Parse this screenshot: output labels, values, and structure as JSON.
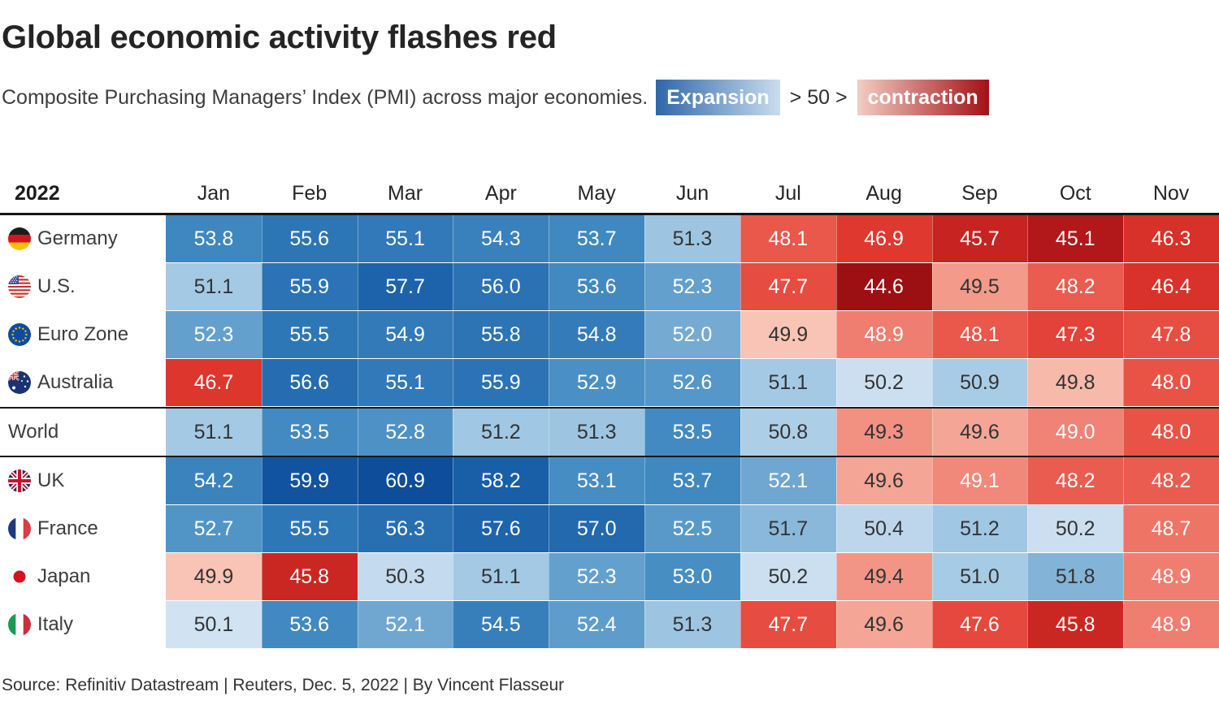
{
  "chart_data": {
    "type": "heatmap",
    "title": "Global economic activity flashes red",
    "subtitle": "Composite Purchasing Managers’ Index (PMI) across major economies.",
    "legend": {
      "expansion_label": "Expansion",
      "threshold_label": "> 50 >",
      "contraction_label": "contraction",
      "expansion_gradient": [
        "#2F66A9",
        "#C9DDEF"
      ],
      "contraction_gradient": [
        "#F3CDC3",
        "#A31016"
      ]
    },
    "year": "2022",
    "columns": [
      "Jan",
      "Feb",
      "Mar",
      "Apr",
      "May",
      "Jun",
      "Jul",
      "Aug",
      "Sep",
      "Oct",
      "Nov"
    ],
    "rows": [
      {
        "label": "Germany",
        "flag": "germany",
        "values": [
          53.8,
          55.6,
          55.1,
          54.3,
          53.7,
          51.3,
          48.1,
          46.9,
          45.7,
          45.1,
          46.3
        ]
      },
      {
        "label": "U.S.",
        "flag": "us",
        "values": [
          51.1,
          55.9,
          57.7,
          56.0,
          53.6,
          52.3,
          47.7,
          44.6,
          49.5,
          48.2,
          46.4
        ]
      },
      {
        "label": "Euro Zone",
        "flag": "eurozone",
        "values": [
          52.3,
          55.5,
          54.9,
          55.8,
          54.8,
          52.0,
          49.9,
          48.9,
          48.1,
          47.3,
          47.8
        ]
      },
      {
        "label": "Australia",
        "flag": "australia",
        "values": [
          46.7,
          56.6,
          55.1,
          55.9,
          52.9,
          52.6,
          51.1,
          50.2,
          50.9,
          49.8,
          48.0
        ]
      },
      {
        "label": "World",
        "flag": null,
        "divider": true,
        "values": [
          51.1,
          53.5,
          52.8,
          51.2,
          51.3,
          53.5,
          50.8,
          49.3,
          49.6,
          49.0,
          48.0
        ]
      },
      {
        "label": "UK",
        "flag": "uk",
        "values": [
          54.2,
          59.9,
          60.9,
          58.2,
          53.1,
          53.7,
          52.1,
          49.6,
          49.1,
          48.2,
          48.2
        ]
      },
      {
        "label": "France",
        "flag": "france",
        "values": [
          52.7,
          55.5,
          56.3,
          57.6,
          57.0,
          52.5,
          51.7,
          50.4,
          51.2,
          50.2,
          48.7
        ]
      },
      {
        "label": "Japan",
        "flag": "japan",
        "values": [
          49.9,
          45.8,
          50.3,
          51.1,
          52.3,
          53.0,
          50.2,
          49.4,
          51.0,
          51.8,
          48.9
        ]
      },
      {
        "label": "Italy",
        "flag": "italy",
        "values": [
          50.1,
          53.6,
          52.1,
          54.5,
          52.4,
          51.3,
          47.7,
          49.6,
          47.6,
          45.8,
          48.9
        ]
      }
    ],
    "color_scale": {
      "blue": [
        [
          50.0,
          "#D8E7F4"
        ],
        [
          50.5,
          "#B7D2EA"
        ],
        [
          51.0,
          "#A6CBE5"
        ],
        [
          51.5,
          "#97C1E0"
        ],
        [
          52.0,
          "#75ABD3"
        ],
        [
          52.5,
          "#5899C9"
        ],
        [
          53.0,
          "#478EC3"
        ],
        [
          53.5,
          "#428AC1"
        ],
        [
          54.0,
          "#3C85BE"
        ],
        [
          54.5,
          "#377FBB"
        ],
        [
          55.0,
          "#3279B9"
        ],
        [
          55.5,
          "#2E77B6"
        ],
        [
          56.0,
          "#2A72B3"
        ],
        [
          57.0,
          "#2269AE"
        ],
        [
          58.0,
          "#1A60A9"
        ],
        [
          60.0,
          "#11529E"
        ],
        [
          61.0,
          "#0C4C99"
        ]
      ],
      "red": [
        [
          44.5,
          "#980E13"
        ],
        [
          45.0,
          "#AE1619"
        ],
        [
          45.5,
          "#C01F1E"
        ],
        [
          46.0,
          "#D22C25"
        ],
        [
          46.5,
          "#DB342B"
        ],
        [
          47.0,
          "#E03A30"
        ],
        [
          47.5,
          "#E4473C"
        ],
        [
          48.0,
          "#E85346"
        ],
        [
          48.5,
          "#EC6A5C"
        ],
        [
          49.0,
          "#F08375"
        ],
        [
          49.5,
          "#F39A8B"
        ],
        [
          49.9,
          "#F9C4B5"
        ],
        [
          50.0,
          "#FBDCD2"
        ]
      ]
    },
    "text_colors": {
      "white_if_gte": 52.0,
      "white_if_lte": 49.2,
      "white": "#FFFFFF",
      "dark": "#333333"
    },
    "source": "Source: Refinitiv Datastream | Reuters, Dec. 5, 2022 | By Vincent Flasseur"
  }
}
